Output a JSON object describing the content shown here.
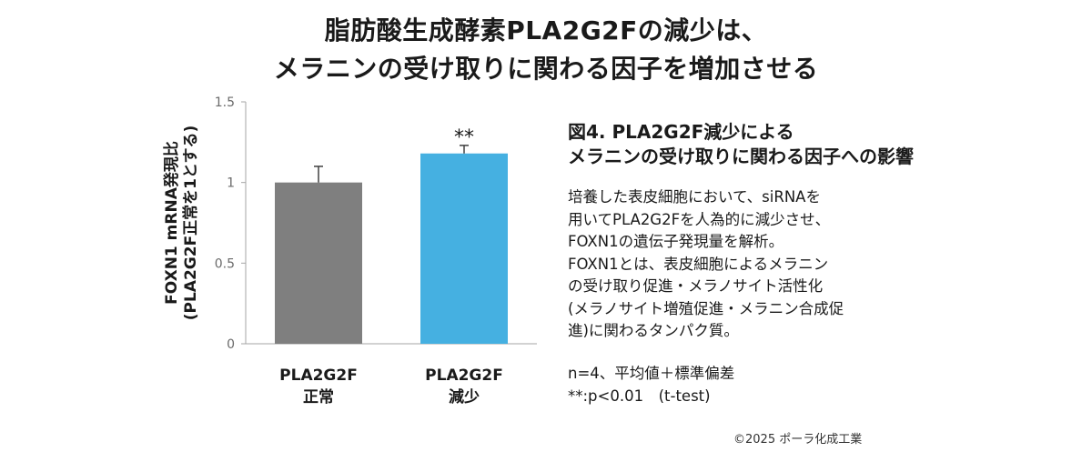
{
  "title": {
    "line1": "脂肪酸生成酵素PLA2G2Fの減少は、",
    "line2": "メラニンの受け取りに関わる因子を増加させる"
  },
  "figure": {
    "caption_line1": "図4. PLA2G2F減少による",
    "caption_line2": "メラニンの受け取りに関わる因子への影響",
    "description": [
      "培養した表皮細胞において、siRNAを",
      "用いてPLA2G2Fを人為的に減少させ、",
      "FOXN1の遺伝子発現量を解析。",
      "FOXN1とは、表皮細胞によるメラニン",
      "の受け取り促進・メラノサイト活性化",
      "(メラノサイト増殖促進・メラニン合成促",
      "進)に関わるタンパク質。"
    ],
    "stats_line1": "n=4、平均値＋標準偏差",
    "stats_line2": "**:p<0.01　(t-test)"
  },
  "copyright": "©2025 ポーラ化成工業",
  "chart_data": {
    "type": "bar",
    "categories": [
      [
        "PLA2G2F",
        "正常"
      ],
      [
        "PLA2G2F",
        "減少"
      ]
    ],
    "values": [
      1.0,
      1.18
    ],
    "error": [
      0.1,
      0.05
    ],
    "significance": [
      "",
      "**"
    ],
    "bar_colors": [
      "#7f7f7f",
      "#45b0e1"
    ],
    "ylabel_line1": "FOXN1 mRNA発現比",
    "ylabel_line2": "(PLA2G2F正常を1とする)",
    "ylim": [
      0,
      1.5
    ],
    "yticks": [
      0,
      0.5,
      1,
      1.5
    ],
    "ytick_labels": [
      "0",
      "0.5",
      "1",
      "1.5"
    ],
    "grid": false
  }
}
